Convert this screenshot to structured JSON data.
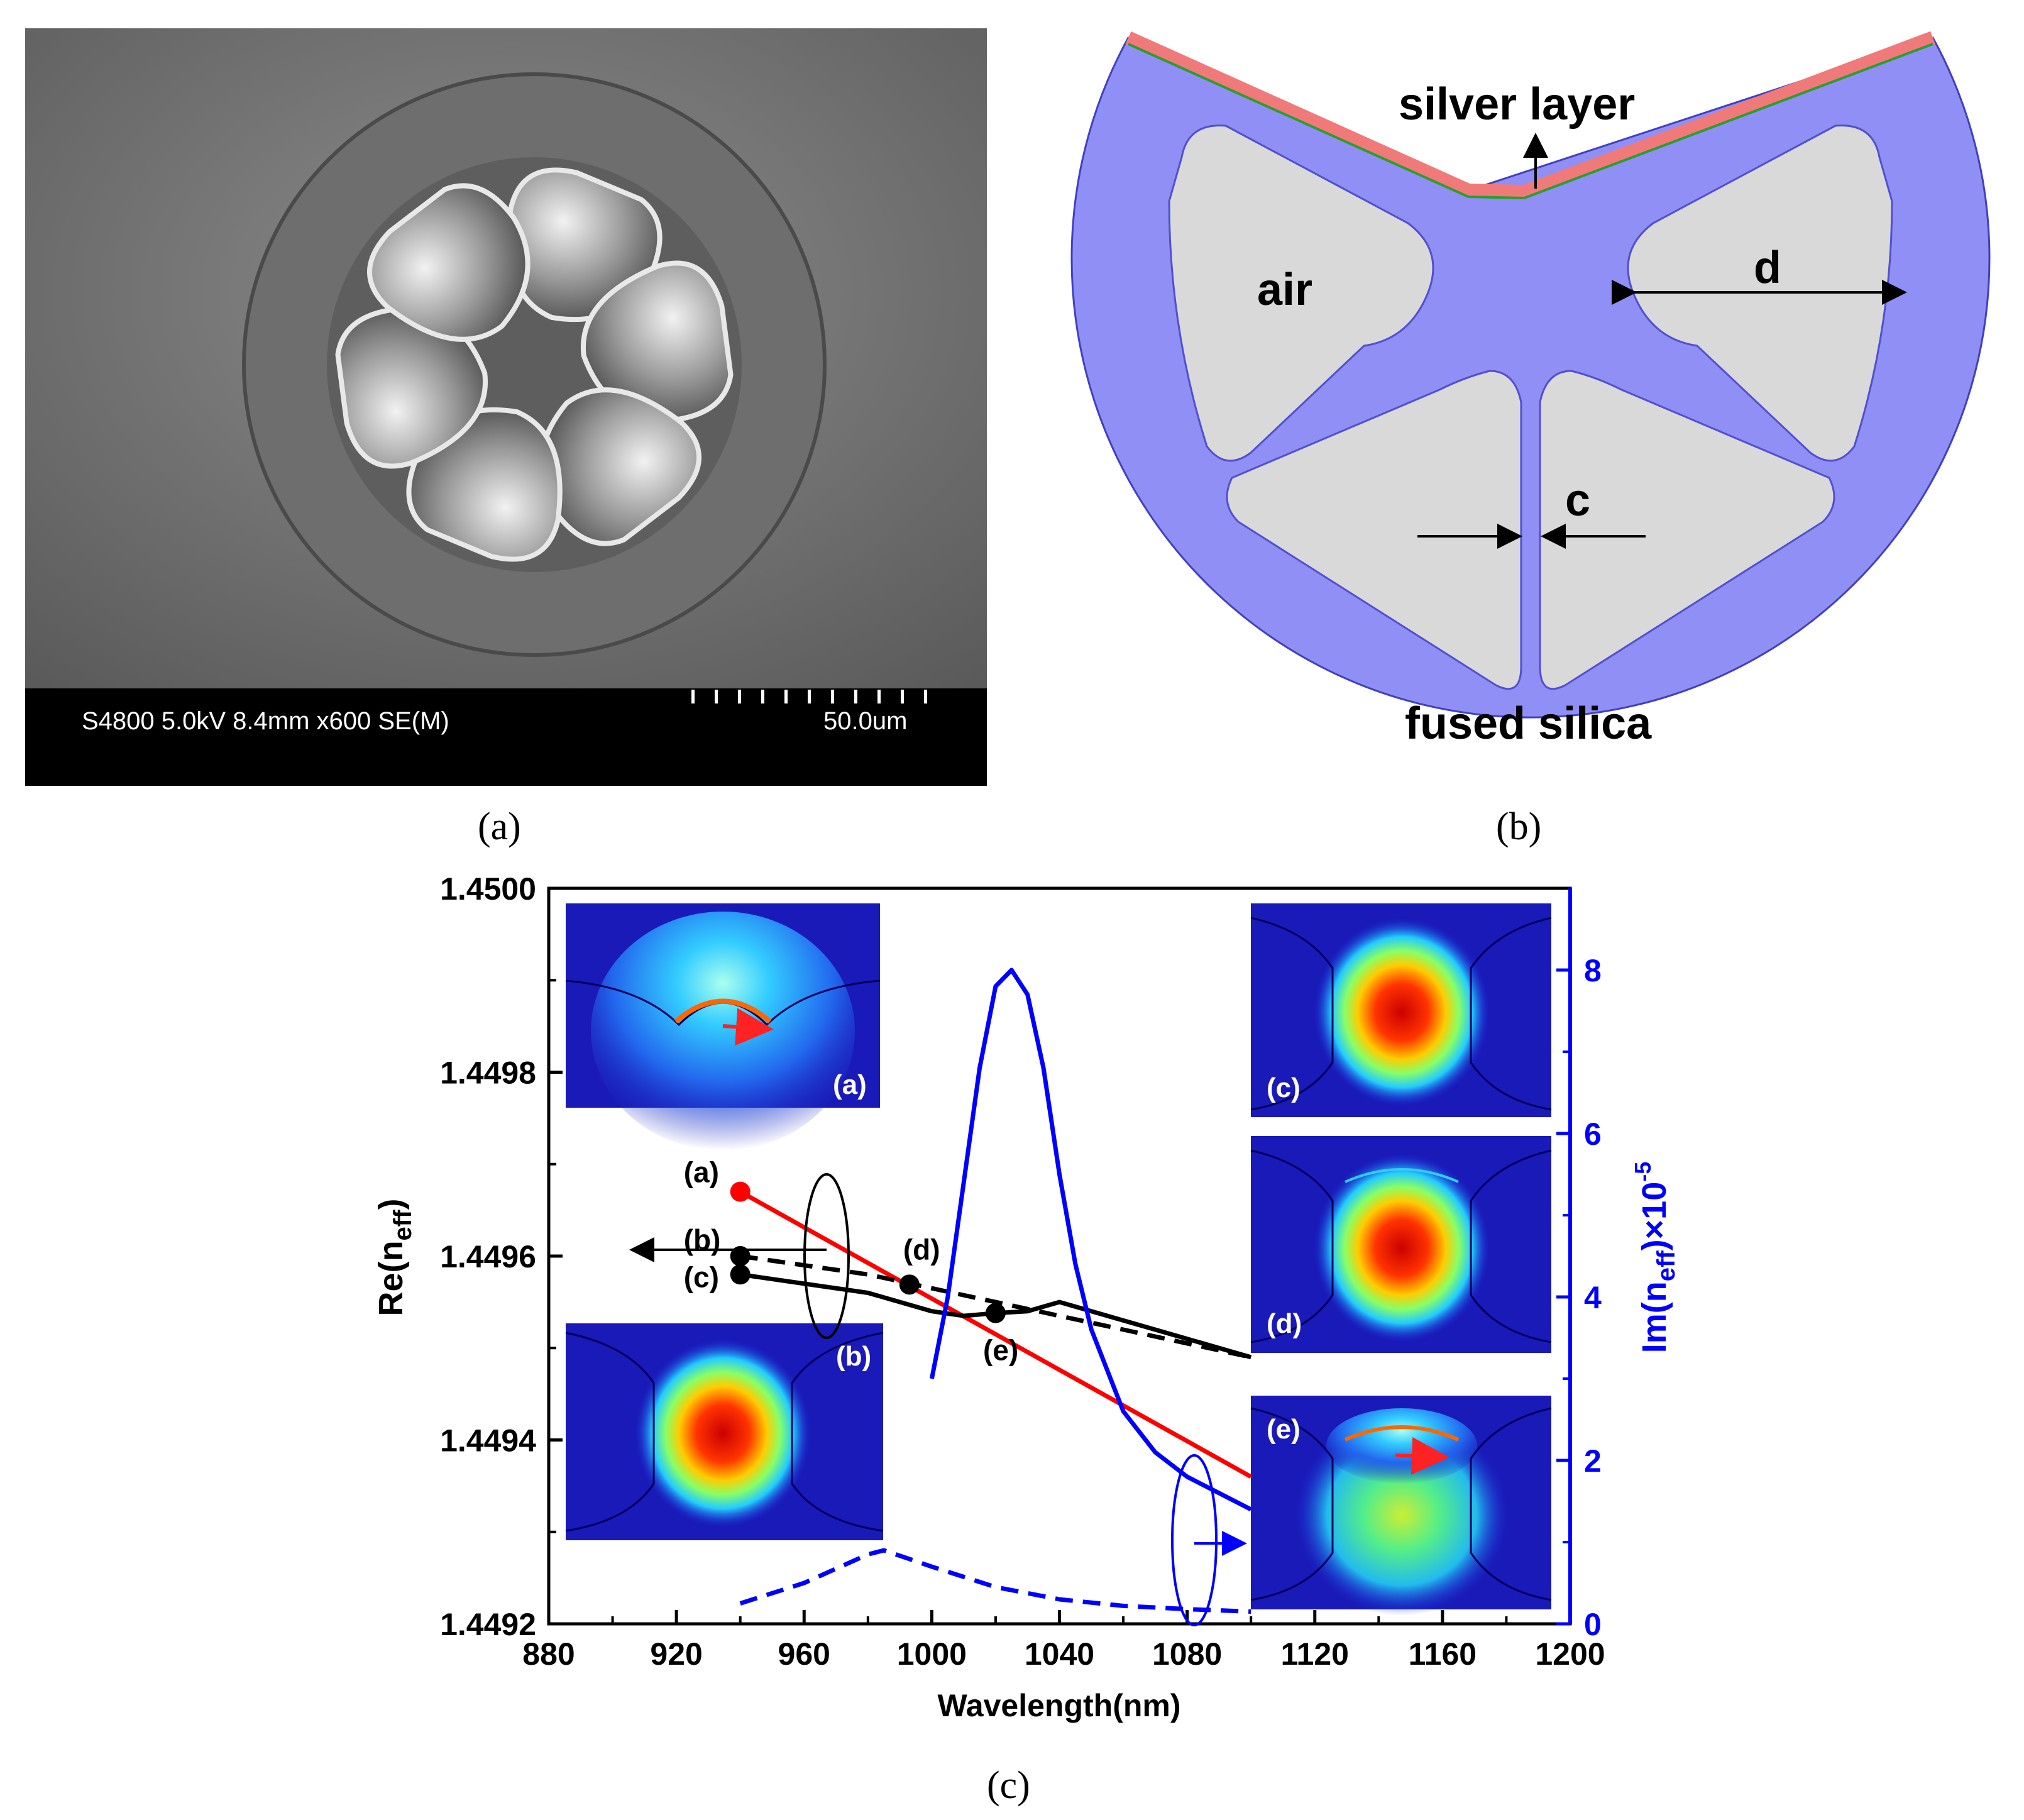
{
  "panel_a": {
    "caption": "(a)",
    "sem_info": "S4800 5.0kV 8.4mm x600 SE(M)",
    "scale_label": "50.0um"
  },
  "panel_b": {
    "caption": "(b)",
    "labels": {
      "silver_layer": "silver layer",
      "air": "air",
      "d": "d",
      "c": "c",
      "fused_silica": "fused silica"
    },
    "colors": {
      "silica": "#8f8ff5",
      "air": "#d9d9d9",
      "silver": "#f07a7a",
      "gold_line": "#2e9c2e"
    }
  },
  "panel_c": {
    "caption": "(c)",
    "point_labels": [
      "(a)",
      "(b)",
      "(c)",
      "(d)",
      "(e)"
    ],
    "inset_labels": [
      "(a)",
      "(b)",
      "(c)",
      "(d)",
      "(e)"
    ]
  },
  "chart_data": {
    "type": "line",
    "xlabel": "Wavelength(nm)",
    "ylabel_left": "Re(n",
    "ylabel_left_sub": "eff",
    "ylabel_left_end": ")",
    "ylabel_right": "Im(n",
    "ylabel_right_sub": "eff",
    "ylabel_right_mid": ")×10",
    "ylabel_right_sup": "-5",
    "xlim": [
      880,
      1200
    ],
    "ylim_left": [
      1.4492,
      1.45
    ],
    "ylim_right": [
      0,
      9
    ],
    "x_ticks": [
      880,
      920,
      960,
      1000,
      1040,
      1080,
      1120,
      1160,
      1200
    ],
    "x_tick_labels": [
      "880",
      "920",
      "960",
      "1000",
      "1040",
      "1080",
      "1120",
      "1160",
      "1200"
    ],
    "y_left_ticks": [
      1.4492,
      1.4494,
      1.4496,
      1.4498,
      1.45
    ],
    "y_left_tick_labels": [
      "1.4492",
      "1.4494",
      "1.4496",
      "1.4498",
      "1.4500"
    ],
    "y_right_ticks": [
      0,
      2,
      4,
      6,
      8
    ],
    "y_right_tick_labels": [
      "0",
      "2",
      "4",
      "6",
      "8"
    ],
    "series": [
      {
        "axis": "left",
        "color": "#ff0000",
        "dash": false,
        "x": [
          940,
          1100
        ],
        "y": [
          1.44967,
          1.44936
        ]
      },
      {
        "axis": "left",
        "color": "#000000",
        "dash": true,
        "x": [
          940,
          960,
          980,
          1000,
          1020,
          1040,
          1060,
          1080,
          1100
        ],
        "y": [
          1.4496,
          1.44959,
          1.44958,
          1.449565,
          1.44955,
          1.449535,
          1.44952,
          1.449505,
          1.44949
        ]
      },
      {
        "axis": "left",
        "color": "#000000",
        "dash": false,
        "x": [
          940,
          960,
          980,
          1000,
          1010,
          1020,
          1030,
          1040,
          1060,
          1080,
          1100
        ],
        "y": [
          1.44958,
          1.44957,
          1.44956,
          1.44954,
          1.449535,
          1.449538,
          1.44954,
          1.44955,
          1.44953,
          1.44951,
          1.44949
        ]
      },
      {
        "axis": "right",
        "color": "#0000ff",
        "dash": false,
        "x": [
          1000,
          1005,
          1010,
          1015,
          1020,
          1025,
          1030,
          1035,
          1040,
          1045,
          1050,
          1060,
          1070,
          1080,
          1090,
          1100
        ],
        "y": [
          3.0,
          4.0,
          5.4,
          6.8,
          7.8,
          8.0,
          7.7,
          6.8,
          5.5,
          4.4,
          3.6,
          2.6,
          2.1,
          1.8,
          1.6,
          1.4
        ]
      },
      {
        "axis": "right",
        "color": "#0000ff",
        "dash": true,
        "x": [
          940,
          960,
          980,
          985,
          1000,
          1020,
          1040,
          1060,
          1080,
          1100
        ],
        "y": [
          0.25,
          0.5,
          0.85,
          0.9,
          0.7,
          0.45,
          0.3,
          0.22,
          0.18,
          0.15
        ]
      }
    ],
    "points": [
      {
        "label": "(a)",
        "x": 940,
        "y": 1.44967,
        "color": "#ff0000"
      },
      {
        "label": "(b)",
        "x": 940,
        "y": 1.4496,
        "color": "#000000"
      },
      {
        "label": "(c)",
        "x": 940,
        "y": 1.44958,
        "color": "#000000"
      },
      {
        "label": "(d)",
        "x": 993,
        "y": 1.449569,
        "color": "#000000"
      },
      {
        "label": "(e)",
        "x": 1020,
        "y": 1.449538,
        "color": "#000000"
      }
    ]
  }
}
